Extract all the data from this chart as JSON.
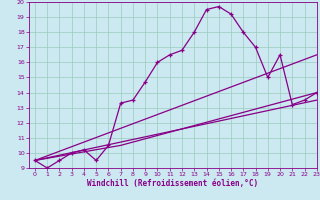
{
  "xlabel": "Windchill (Refroidissement éolien,°C)",
  "bg_color": "#cce8f0",
  "line_color": "#880088",
  "grid_color": "#99ccbb",
  "xlim": [
    -0.5,
    23
  ],
  "ylim": [
    9,
    20
  ],
  "yticks": [
    9,
    10,
    11,
    12,
    13,
    14,
    15,
    16,
    17,
    18,
    19,
    20
  ],
  "xticks": [
    0,
    1,
    2,
    3,
    4,
    5,
    6,
    7,
    8,
    9,
    10,
    11,
    12,
    13,
    14,
    15,
    16,
    17,
    18,
    19,
    20,
    21,
    22,
    23
  ],
  "main_x": [
    0,
    1,
    2,
    3,
    4,
    5,
    6,
    7,
    8,
    9,
    10,
    11,
    12,
    13,
    14,
    15,
    16,
    17,
    18,
    19,
    20,
    21,
    22,
    23
  ],
  "main_y": [
    9.5,
    9.0,
    9.5,
    10.0,
    10.2,
    9.5,
    10.5,
    13.3,
    13.5,
    14.7,
    16.0,
    16.5,
    16.8,
    18.0,
    19.5,
    19.7,
    19.2,
    18.0,
    17.0,
    15.0,
    16.5,
    13.2,
    13.5,
    14.0
  ],
  "line1_x": [
    0,
    23
  ],
  "line1_y": [
    9.5,
    13.5
  ],
  "line2_x": [
    0,
    23
  ],
  "line2_y": [
    9.5,
    16.5
  ],
  "line3_x": [
    0,
    7,
    23
  ],
  "line3_y": [
    9.5,
    10.5,
    14.0
  ]
}
